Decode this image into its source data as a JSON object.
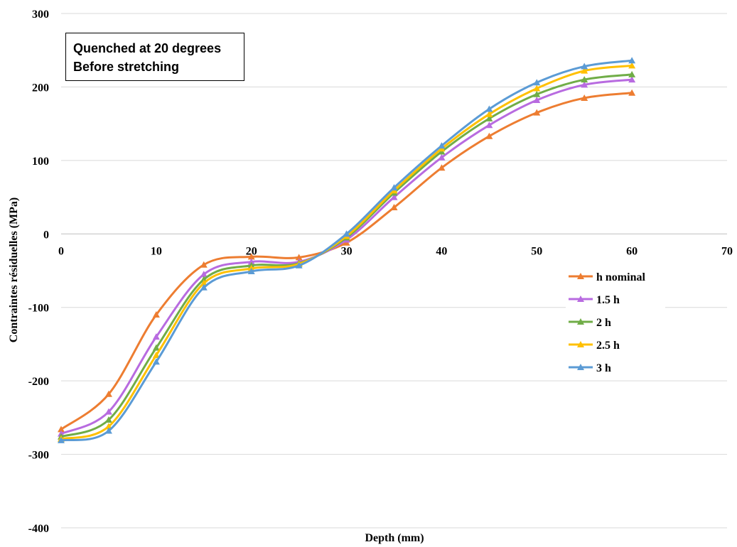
{
  "chart_data": {
    "type": "line",
    "title": "",
    "xlabel": "Depth (mm)",
    "ylabel": "Contraintes résiduelles (MPa)",
    "xlim": [
      0,
      70
    ],
    "ylim": [
      -400,
      300
    ],
    "xticks": [
      "0",
      "10",
      "20",
      "30",
      "40",
      "50",
      "60",
      "70"
    ],
    "yticks": [
      "300",
      "200",
      "100",
      "0",
      "-100",
      "-200",
      "-300",
      "-400"
    ],
    "grid": "horizontal",
    "legend_position": "right",
    "annotation": [
      "Quenched at 20 degrees",
      "Before stretching"
    ],
    "x": [
      0,
      5,
      10,
      15,
      20,
      25,
      30,
      35,
      40,
      45,
      50,
      55,
      60
    ],
    "series": [
      {
        "name": "h nominal",
        "color": "#ED7D31",
        "values": [
          -266,
          -218,
          -110,
          -42,
          -31,
          -32,
          -12,
          36,
          90,
          133,
          165,
          185,
          192
        ]
      },
      {
        "name": "1.5 h",
        "color": "#B86BE0",
        "values": [
          -272,
          -242,
          -140,
          -55,
          -38,
          -38,
          -8,
          50,
          104,
          148,
          182,
          203,
          210
        ]
      },
      {
        "name": "2 h",
        "color": "#70AD47",
        "values": [
          -276,
          -253,
          -155,
          -62,
          -43,
          -40,
          -5,
          56,
          112,
          157,
          190,
          210,
          217
        ]
      },
      {
        "name": "2.5 h",
        "color": "#FFC000",
        "values": [
          -279,
          -262,
          -165,
          -67,
          -47,
          -41,
          -3,
          59,
          116,
          163,
          198,
          222,
          229
        ]
      },
      {
        "name": "3 h",
        "color": "#5B9BD5",
        "values": [
          -281,
          -268,
          -174,
          -73,
          -51,
          -43,
          0,
          63,
          120,
          170,
          206,
          228,
          236
        ]
      }
    ]
  }
}
